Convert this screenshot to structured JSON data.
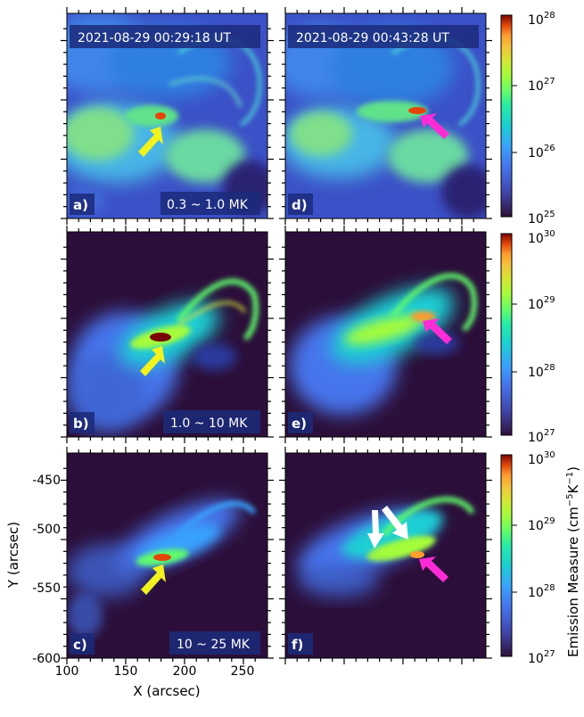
{
  "panels": [
    {
      "id": "a",
      "label": "a)",
      "timestamp": "2021-08-29 00:29:18 UT",
      "temp_range": "0.3 ~ 1.0 MK",
      "arrow_color": "#f2f21c",
      "row": 0,
      "col": 0
    },
    {
      "id": "b",
      "label": "b)",
      "timestamp": "",
      "temp_range": "1.0 ~ 10 MK",
      "arrow_color": "#f2f21c",
      "row": 1,
      "col": 0
    },
    {
      "id": "c",
      "label": "c)",
      "timestamp": "",
      "temp_range": "10 ~ 25 MK",
      "arrow_color": "#f2f21c",
      "row": 2,
      "col": 0
    },
    {
      "id": "d",
      "label": "d)",
      "timestamp": "2021-08-29 00:43:28 UT",
      "temp_range": "",
      "arrow_color": "#ff2bd6",
      "row": 0,
      "col": 1
    },
    {
      "id": "e",
      "label": "e)",
      "timestamp": "",
      "temp_range": "",
      "arrow_color": "#ff2bd6",
      "row": 1,
      "col": 1
    },
    {
      "id": "f",
      "label": "f)",
      "timestamp": "",
      "temp_range": "",
      "arrow_color": "#ff2bd6",
      "row": 2,
      "col": 1
    }
  ],
  "colorbars": [
    {
      "id": "cb1",
      "min_label": "10",
      "min_exp": "25",
      "max_label": "10",
      "max_exp": "28",
      "ticks": [
        {
          "base": "10",
          "exp": "27"
        },
        {
          "base": "10",
          "exp": "26"
        }
      ]
    },
    {
      "id": "cb2",
      "min_label": "10",
      "min_exp": "27",
      "max_label": "10",
      "max_exp": "30",
      "ticks": [
        {
          "base": "10",
          "exp": "29"
        },
        {
          "base": "10",
          "exp": "28"
        }
      ]
    },
    {
      "id": "cb3",
      "min_label": "10",
      "min_exp": "27",
      "max_label": "10",
      "max_exp": "30",
      "ticks": [
        {
          "base": "10",
          "exp": "29"
        },
        {
          "base": "10",
          "exp": "28"
        }
      ]
    }
  ],
  "colorbar_title": "Emission Measure (cm",
  "colorbar_title_exp1": "−5",
  "colorbar_title_mid": "K",
  "colorbar_title_exp2": "−1",
  "colorbar_title_end": ")",
  "x_axis": {
    "title": "X (arcsec)",
    "ticks": [
      "100",
      "150",
      "200",
      "250"
    ]
  },
  "y_axis": {
    "title": "Y (arcsec)",
    "ticks": [
      "-450",
      "-500",
      "-550",
      "-600"
    ]
  },
  "colors": {
    "background": "#2b0f3a",
    "cmap_low": "#30123b",
    "cmap_high": "#7a0403"
  }
}
